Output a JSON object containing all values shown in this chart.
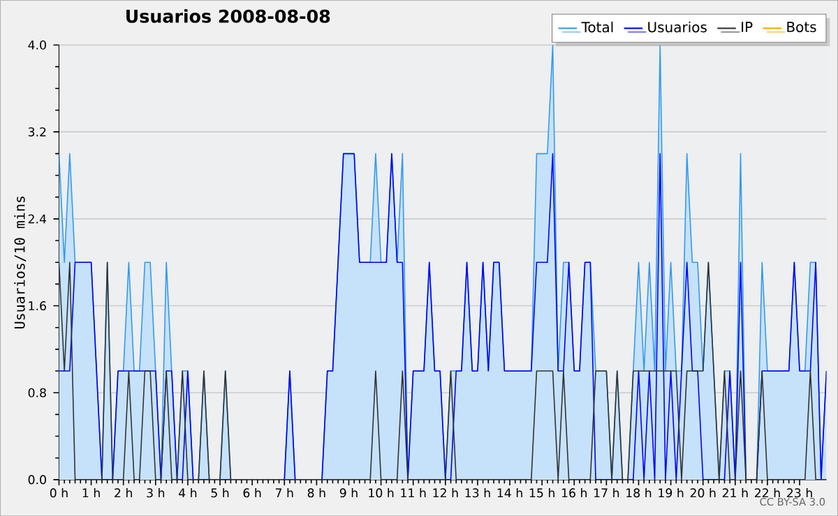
{
  "chart_data": {
    "type": "line",
    "title": "Usuarios  2008-08-08",
    "ylabel": "Usuarios/10 mins",
    "annotations": [
      "CC BY-SA 3.0"
    ],
    "x": [
      0,
      0.1667,
      0.3333,
      0.5,
      0.6667,
      0.8333,
      1,
      1.1667,
      1.3333,
      1.5,
      1.6667,
      1.8333,
      2,
      2.1667,
      2.3333,
      2.5,
      2.6667,
      2.8333,
      3,
      3.1667,
      3.3333,
      3.5,
      3.6667,
      3.8333,
      4,
      4.1667,
      4.3333,
      4.5,
      4.6667,
      4.8333,
      5,
      5.1667,
      5.3333,
      5.5,
      5.6667,
      5.8333,
      6,
      6.1667,
      6.3333,
      6.5,
      6.6667,
      6.8333,
      7,
      7.1667,
      7.3333,
      7.5,
      7.6667,
      7.8333,
      8,
      8.1667,
      8.3333,
      8.5,
      8.6667,
      8.8333,
      9,
      9.1667,
      9.3333,
      9.5,
      9.6667,
      9.8333,
      10,
      10.1667,
      10.3333,
      10.5,
      10.6667,
      10.8333,
      11,
      11.1667,
      11.3333,
      11.5,
      11.6667,
      11.8333,
      12,
      12.1667,
      12.3333,
      12.5,
      12.6667,
      12.8333,
      13,
      13.1667,
      13.3333,
      13.5,
      13.6667,
      13.8333,
      14,
      14.1667,
      14.3333,
      14.5,
      14.6667,
      14.8333,
      15,
      15.1667,
      15.3333,
      15.5,
      15.6667,
      15.8333,
      16,
      16.1667,
      16.3333,
      16.5,
      16.6667,
      16.8333,
      17,
      17.1667,
      17.3333,
      17.5,
      17.6667,
      17.8333,
      18,
      18.1667,
      18.3333,
      18.5,
      18.6667,
      18.8333,
      19,
      19.1667,
      19.3333,
      19.5,
      19.6667,
      19.8333,
      20,
      20.1667,
      20.3333,
      20.5,
      20.6667,
      20.8333,
      21,
      21.1667,
      21.3333,
      21.5,
      21.6667,
      21.8333,
      22,
      22.1667,
      22.3333,
      22.5,
      22.6667,
      22.8333,
      23,
      23.1667,
      23.3333,
      23.5,
      23.6667,
      23.8333
    ],
    "series": [
      {
        "name": "Total",
        "type": "area",
        "color": "#3399ee",
        "values": [
          3,
          2,
          3,
          2,
          2,
          2,
          2,
          1,
          0,
          2,
          0,
          1,
          1,
          2,
          1,
          1,
          2,
          2,
          1,
          0,
          2,
          1,
          0,
          1,
          1,
          0,
          0,
          1,
          0,
          0,
          0,
          1,
          0,
          0,
          0,
          0,
          0,
          0,
          0,
          0,
          0,
          0,
          0,
          1,
          0,
          0,
          0,
          0,
          0,
          0,
          1,
          1,
          2,
          3,
          3,
          3,
          2,
          2,
          2,
          3,
          2,
          2,
          3,
          2,
          3,
          0,
          1,
          1,
          1,
          2,
          1,
          1,
          0,
          1,
          1,
          1,
          2,
          1,
          1,
          2,
          1,
          2,
          2,
          1,
          1,
          1,
          1,
          1,
          1,
          3,
          3,
          3,
          4,
          1,
          2,
          2,
          1,
          1,
          2,
          2,
          1,
          1,
          1,
          0,
          1,
          0,
          0,
          1,
          2,
          1,
          2,
          1,
          4,
          1,
          2,
          1,
          1,
          3,
          2,
          2,
          1,
          2,
          1,
          0,
          1,
          1,
          0,
          3,
          0,
          0,
          0,
          2,
          1,
          1,
          1,
          1,
          1,
          2,
          1,
          1,
          2,
          2,
          0,
          1
        ]
      },
      {
        "name": "Usuarios",
        "color": "#0000ff",
        "values": [
          1,
          1,
          1,
          2,
          2,
          2,
          2,
          1,
          0,
          0,
          0,
          1,
          1,
          1,
          1,
          1,
          1,
          1,
          1,
          0,
          1,
          1,
          0,
          0,
          1,
          0,
          0,
          0,
          0,
          0,
          0,
          0,
          0,
          0,
          0,
          0,
          0,
          0,
          0,
          0,
          0,
          0,
          0,
          1,
          0,
          0,
          0,
          0,
          0,
          0,
          1,
          1,
          2,
          3,
          3,
          3,
          2,
          2,
          2,
          2,
          2,
          2,
          3,
          2,
          2,
          0,
          1,
          1,
          1,
          2,
          1,
          1,
          0,
          0,
          1,
          1,
          2,
          1,
          1,
          2,
          1,
          2,
          2,
          1,
          1,
          1,
          1,
          1,
          1,
          2,
          2,
          2,
          3,
          1,
          1,
          2,
          1,
          1,
          2,
          2,
          0,
          0,
          0,
          0,
          0,
          0,
          0,
          0,
          1,
          0,
          1,
          0,
          3,
          0,
          1,
          0,
          1,
          2,
          1,
          1,
          0,
          0,
          0,
          0,
          0,
          1,
          0,
          2,
          0,
          0,
          0,
          1,
          1,
          1,
          1,
          1,
          1,
          2,
          1,
          1,
          1,
          2,
          0,
          1
        ]
      },
      {
        "name": "IP",
        "color": "#333333",
        "values": [
          2,
          1,
          2,
          0,
          0,
          0,
          0,
          0,
          0,
          2,
          0,
          0,
          0,
          1,
          0,
          0,
          1,
          1,
          0,
          0,
          1,
          0,
          0,
          1,
          0,
          0,
          0,
          1,
          0,
          0,
          0,
          1,
          0,
          0,
          0,
          0,
          0,
          0,
          0,
          0,
          0,
          0,
          0,
          0,
          0,
          0,
          0,
          0,
          0,
          0,
          0,
          0,
          0,
          0,
          0,
          0,
          0,
          0,
          0,
          1,
          0,
          0,
          0,
          0,
          1,
          0,
          0,
          0,
          0,
          0,
          0,
          0,
          0,
          1,
          0,
          0,
          0,
          0,
          0,
          0,
          0,
          0,
          0,
          0,
          0,
          0,
          0,
          0,
          0,
          1,
          1,
          1,
          1,
          0,
          1,
          0,
          0,
          0,
          0,
          0,
          1,
          1,
          1,
          0,
          1,
          0,
          0,
          1,
          1,
          1,
          1,
          1,
          1,
          1,
          1,
          1,
          0,
          1,
          1,
          1,
          1,
          2,
          1,
          0,
          1,
          0,
          0,
          1,
          0,
          0,
          0,
          1,
          0,
          0,
          0,
          0,
          0,
          0,
          0,
          0,
          1,
          0,
          0,
          0
        ]
      },
      {
        "name": "Bots",
        "color": "#ffa500",
        "values": [
          null,
          null,
          null,
          null,
          null,
          null,
          null,
          null,
          null,
          null,
          null,
          null,
          null,
          null,
          null,
          null,
          null,
          null,
          null,
          null,
          null,
          null,
          null,
          null,
          null,
          null,
          null,
          null,
          null,
          null,
          null,
          null,
          null,
          null,
          null,
          null,
          null,
          null,
          null,
          null,
          null,
          null,
          null,
          null,
          null,
          null,
          null,
          null,
          null,
          null,
          null,
          null,
          null,
          null,
          null,
          null,
          null,
          null,
          null,
          null,
          null,
          null,
          null,
          null,
          null,
          null,
          null,
          null,
          null,
          null,
          null,
          null,
          null,
          null,
          null,
          null,
          null,
          null,
          null,
          null,
          null,
          null,
          null,
          null,
          null,
          null,
          null,
          null,
          null,
          null,
          null,
          null,
          null,
          null,
          null,
          null,
          null,
          null,
          null,
          null,
          null,
          null,
          null,
          null,
          null,
          null,
          null,
          null,
          null,
          null,
          null,
          null,
          null,
          null,
          null,
          null,
          null,
          null,
          null,
          null,
          null,
          null,
          null,
          null,
          null,
          null,
          null,
          null,
          null,
          null,
          null,
          null,
          null,
          null,
          null,
          null,
          null,
          null,
          null,
          null,
          null,
          null,
          null,
          null
        ]
      }
    ],
    "xlim": [
      0,
      23.8333
    ],
    "ylim": [
      0,
      4
    ],
    "xticks": [
      {
        "value": 0,
        "label": "0 h"
      },
      {
        "value": 1,
        "label": "1 h"
      },
      {
        "value": 2,
        "label": "2 h"
      },
      {
        "value": 3,
        "label": "3 h"
      },
      {
        "value": 4,
        "label": "4 h"
      },
      {
        "value": 5,
        "label": "5 h"
      },
      {
        "value": 6,
        "label": "6 h"
      },
      {
        "value": 7,
        "label": "7 h"
      },
      {
        "value": 8,
        "label": "8 h"
      },
      {
        "value": 9,
        "label": "9 h"
      },
      {
        "value": 10,
        "label": "10 h"
      },
      {
        "value": 11,
        "label": "11 h"
      },
      {
        "value": 12,
        "label": "12 h"
      },
      {
        "value": 13,
        "label": "13 h"
      },
      {
        "value": 14,
        "label": "14 h"
      },
      {
        "value": 15,
        "label": "15 h"
      },
      {
        "value": 16,
        "label": "16 h"
      },
      {
        "value": 17,
        "label": "17 h"
      },
      {
        "value": 18,
        "label": "18 h"
      },
      {
        "value": 19,
        "label": "19 h"
      },
      {
        "value": 20,
        "label": "20 h"
      },
      {
        "value": 21,
        "label": "21 h"
      },
      {
        "value": 22,
        "label": "22 h"
      },
      {
        "value": 23,
        "label": "23 h"
      }
    ],
    "yticks": [
      {
        "value": 0,
        "label": "0.0"
      },
      0.8,
      1.6,
      2.4,
      3.2,
      {
        "value": 4,
        "label": "4.0"
      }
    ],
    "grid": "y",
    "legend": "top right"
  }
}
